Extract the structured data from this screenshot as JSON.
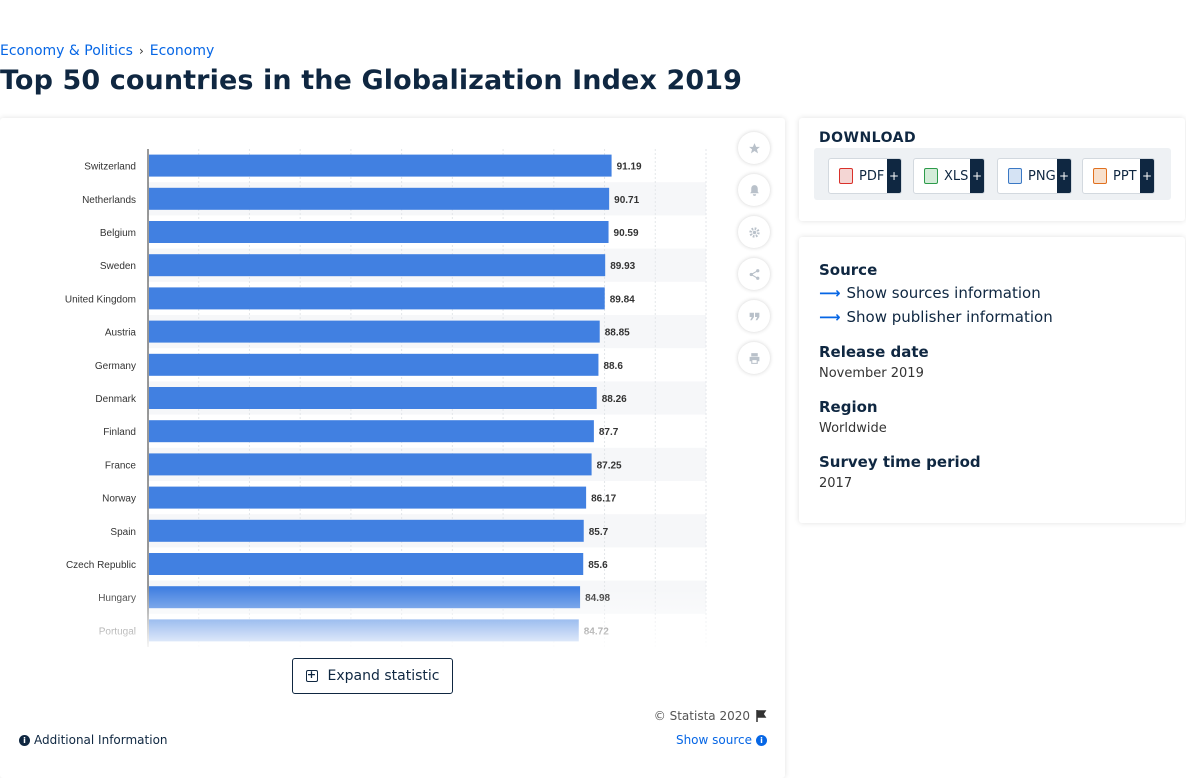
{
  "breadcrumb": {
    "items": [
      "Economy & Politics",
      "Economy"
    ],
    "separator": "›"
  },
  "page_title": "Top 50 countries in the Globalization Index 2019",
  "chart_data": {
    "type": "bar",
    "orientation": "horizontal",
    "categories": [
      "Switzerland",
      "Netherlands",
      "Belgium",
      "Sweden",
      "United Kingdom",
      "Austria",
      "Germany",
      "Denmark",
      "Finland",
      "France",
      "Norway",
      "Spain",
      "Czech Republic",
      "Hungary",
      "Portugal"
    ],
    "values": [
      91.19,
      90.71,
      90.59,
      89.93,
      89.84,
      88.85,
      88.6,
      88.26,
      87.7,
      87.25,
      86.17,
      85.7,
      85.6,
      84.98,
      84.72
    ],
    "value_labels": [
      "91.19",
      "90.71",
      "90.59",
      "89.93",
      "89.84",
      "88.85",
      "88.6",
      "88.26",
      "87.7",
      "87.25",
      "86.17",
      "85.7",
      "85.6",
      "84.98",
      "84.72"
    ],
    "xlim": [
      0,
      110
    ],
    "grid": true,
    "bar_color": "#4180e1",
    "title": "",
    "xlabel": "",
    "ylabel": ""
  },
  "tools": [
    "star-icon",
    "bell-icon",
    "gear-icon",
    "share-icon",
    "quote-icon",
    "print-icon"
  ],
  "expand_label": "Expand statistic",
  "copyright": "© Statista 2020",
  "additional_info": "Additional Information",
  "show_source": "Show source",
  "download": {
    "title": "DOWNLOAD",
    "buttons": [
      {
        "label": "PDF",
        "plus": "+",
        "color": "#d9312b"
      },
      {
        "label": "XLS",
        "plus": "+",
        "color": "#2c9b4a"
      },
      {
        "label": "PNG",
        "plus": "+",
        "color": "#3a78c4"
      },
      {
        "label": "PPT",
        "plus": "+",
        "color": "#e0701f"
      }
    ]
  },
  "meta": {
    "source_label": "Source",
    "show_sources": "Show sources information",
    "show_publisher": "Show publisher information",
    "release_label": "Release date",
    "release_value": "November 2019",
    "region_label": "Region",
    "region_value": "Worldwide",
    "survey_label": "Survey time period",
    "survey_value": "2017"
  },
  "colors": {
    "accent": "#0666e5",
    "dark": "#0f2741",
    "bar": "#4180e1"
  }
}
